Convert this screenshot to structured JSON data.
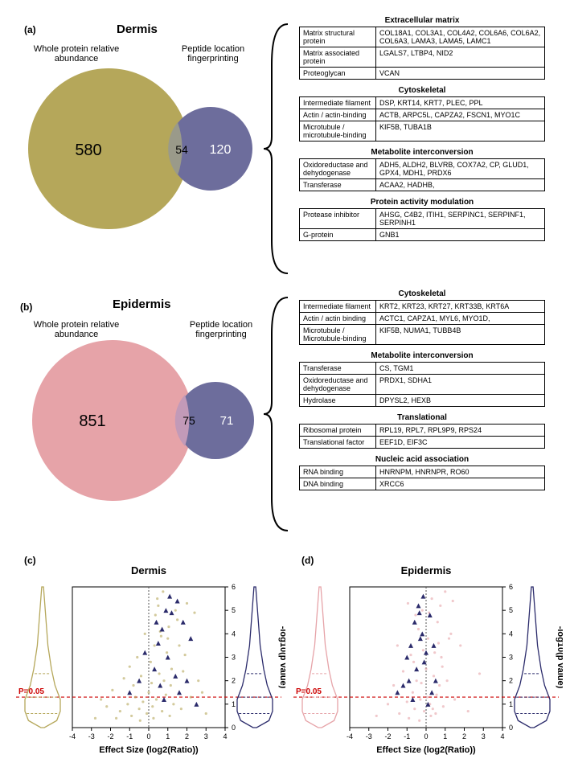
{
  "dermis": {
    "panel_label": "(a)",
    "title": "Dermis",
    "left_label": "Whole protein relative\nabundance",
    "right_label": "Peptide location\nfingerprinting",
    "venn": {
      "left_count": "580",
      "overlap_count": "54",
      "right_count": "120",
      "left_color": "#b5a75a",
      "right_color": "#6d6d9c",
      "overlap_color": "#8f8f8f"
    },
    "tables": [
      {
        "title": "Extracellular matrix",
        "rows": [
          [
            "Matrix structural protein",
            "COL18A1, COL3A1, COL4A2, COL6A6, COL6A2, COL6A3, LAMA3, LAMA5, LAMC1"
          ],
          [
            "Matrix associated protein",
            "LGALS7, LTBP4, NID2"
          ],
          [
            "Proteoglycan",
            "VCAN"
          ]
        ]
      },
      {
        "title": "Cytoskeletal",
        "rows": [
          [
            "Intermediate filament",
            "DSP, KRT14, KRT7, PLEC, PPL"
          ],
          [
            "Actin / actin-binding",
            "ACTB, ARPC5L, CAPZA2, FSCN1, MYO1C"
          ],
          [
            "Microtubule / microtubule-binding",
            "KIF5B, TUBA1B"
          ]
        ]
      },
      {
        "title": "Metabolite interconversion",
        "rows": [
          [
            "Oxidoreductase and dehydogenase",
            "ADH5, ALDH2, BLVRB, COX7A2, CP, GLUD1, GPX4, MDH1, PRDX6"
          ],
          [
            "Transferase",
            "ACAA2, HADHB,"
          ]
        ]
      },
      {
        "title": "Protein activity modulation",
        "rows": [
          [
            "Protease inhibitor",
            "AHSG, C4B2, ITIH1, SERPINC1, SERPINF1, SERPINH1"
          ],
          [
            "G-protein",
            "GNB1"
          ]
        ]
      }
    ]
  },
  "epidermis": {
    "panel_label": "(b)",
    "title": "Epidermis",
    "left_label": "Whole protein relative\nabundance",
    "right_label": "Peptide location\nfingerprinting",
    "venn": {
      "left_count": "851",
      "overlap_count": "75",
      "right_count": "71",
      "left_color": "#e6a3a8",
      "right_color": "#6d6d9c",
      "overlap_color": "#b98fb0"
    },
    "tables": [
      {
        "title": "Cytoskeletal",
        "rows": [
          [
            "Intermediate filament",
            "KRT2, KRT23, KRT27, KRT33B, KRT6A"
          ],
          [
            "Actin / actin binding",
            "ACTC1, CAPZA1, MYL6, MYO1D,"
          ],
          [
            "Microtubule / Microtubule-binding",
            "KIF5B, NUMA1, TUBB4B"
          ]
        ]
      },
      {
        "title": "Metabolite interconversion",
        "rows": [
          [
            "Transferase",
            "CS, TGM1"
          ],
          [
            "Oxidoreductase and dehydogenase",
            "PRDX1, SDHA1"
          ],
          [
            "Hydrolase",
            "DPYSL2, HEXB"
          ]
        ]
      },
      {
        "title": "Translational",
        "rows": [
          [
            "Ribosomal protein",
            "RPL19, RPL7, RPL9P9, RPS24"
          ],
          [
            "Translational factor",
            "EEF1D, EIF3C"
          ]
        ]
      },
      {
        "title": "Nucleic acid association",
        "rows": [
          [
            "RNA binding",
            "HNRNPM, HNRNPR, RO60"
          ],
          [
            "DNA binding",
            "XRCC6"
          ]
        ]
      }
    ]
  },
  "charts": {
    "dermis": {
      "panel_label": "(c)",
      "title": "Dermis",
      "xlabel": "Effect Size (log2(Ratio))",
      "ylabel": "-log10(p value)",
      "xlim": [
        -4,
        4
      ],
      "ylim": [
        0,
        6
      ],
      "xticks": [
        -4,
        -3,
        -2,
        -1,
        0,
        1,
        2,
        3,
        4
      ],
      "yticks": [
        0,
        1,
        2,
        3,
        4,
        5,
        6
      ],
      "p_line_label": "P=0.05",
      "p_line_y": 1.301,
      "scatter_colors": {
        "bg": "#b5a75a",
        "fg": "#2b2b6b"
      },
      "violin_left_color": "#b5a75a",
      "violin_right_color": "#2b2b6b",
      "bg_points": [
        [
          -2.8,
          0.4
        ],
        [
          -2.2,
          0.9
        ],
        [
          -1.9,
          1.6
        ],
        [
          -1.5,
          0.7
        ],
        [
          -1.3,
          2.1
        ],
        [
          -1.1,
          1.0
        ],
        [
          -0.9,
          0.5
        ],
        [
          -0.8,
          1.8
        ],
        [
          -0.6,
          3.0
        ],
        [
          -0.5,
          0.8
        ],
        [
          -0.4,
          2.2
        ],
        [
          -0.3,
          1.1
        ],
        [
          -0.2,
          4.0
        ],
        [
          -0.1,
          0.6
        ],
        [
          0.0,
          1.5
        ],
        [
          0.1,
          2.8
        ],
        [
          0.2,
          0.9
        ],
        [
          0.3,
          3.5
        ],
        [
          0.4,
          1.2
        ],
        [
          0.5,
          5.2
        ],
        [
          0.6,
          4.1
        ],
        [
          0.7,
          0.7
        ],
        [
          0.8,
          2.0
        ],
        [
          0.9,
          1.4
        ],
        [
          1.0,
          3.8
        ],
        [
          1.1,
          0.5
        ],
        [
          1.2,
          2.5
        ],
        [
          1.3,
          1.0
        ],
        [
          1.5,
          4.6
        ],
        [
          1.7,
          0.8
        ],
        [
          1.9,
          3.1
        ],
        [
          2.2,
          1.3
        ],
        [
          2.6,
          2.0
        ],
        [
          3.0,
          0.6
        ],
        [
          -2.5,
          1.2
        ],
        [
          -1.7,
          0.4
        ],
        [
          -1.0,
          2.6
        ],
        [
          -0.7,
          1.3
        ],
        [
          0.15,
          1.9
        ],
        [
          0.35,
          4.8
        ],
        [
          0.55,
          2.3
        ],
        [
          0.75,
          5.8
        ],
        [
          0.95,
          3.2
        ],
        [
          1.15,
          1.8
        ],
        [
          1.4,
          5.0
        ],
        [
          1.8,
          2.4
        ],
        [
          2.4,
          4.9
        ],
        [
          2.8,
          1.5
        ],
        [
          -0.45,
          0.3
        ],
        [
          0.25,
          0.4
        ],
        [
          0.45,
          5.5
        ],
        [
          0.65,
          3.9
        ],
        [
          1.05,
          4.3
        ],
        [
          1.6,
          3.5
        ],
        [
          2.0,
          5.3
        ]
      ],
      "fg_points": [
        [
          1.5,
          5.4
        ],
        [
          1.2,
          4.9
        ],
        [
          0.9,
          5.0
        ],
        [
          0.7,
          4.2
        ],
        [
          0.5,
          3.6
        ],
        [
          1.0,
          3.0
        ],
        [
          1.8,
          4.5
        ],
        [
          2.2,
          3.8
        ],
        [
          0.3,
          2.5
        ],
        [
          0.6,
          1.8
        ],
        [
          1.4,
          2.2
        ],
        [
          2.0,
          2.0
        ],
        [
          0.8,
          1.2
        ],
        [
          1.6,
          1.5
        ],
        [
          2.5,
          1.0
        ],
        [
          -0.2,
          3.2
        ],
        [
          -0.5,
          2.0
        ],
        [
          -1.0,
          1.5
        ],
        [
          0.4,
          4.5
        ],
        [
          1.1,
          5.6
        ]
      ]
    },
    "epidermis": {
      "panel_label": "(d)",
      "title": "Epidermis",
      "xlabel": "Effect Size (log2(Ratio))",
      "ylabel": "-log10(p value)",
      "xlim": [
        -4,
        4
      ],
      "ylim": [
        0,
        6
      ],
      "xticks": [
        -4,
        -3,
        -2,
        -1,
        0,
        1,
        2,
        3,
        4
      ],
      "yticks": [
        0,
        1,
        2,
        3,
        4,
        5,
        6
      ],
      "p_line_label": "P=0.05",
      "p_line_y": 1.301,
      "scatter_colors": {
        "bg": "#e6a3a8",
        "fg": "#2b2b6b"
      },
      "violin_left_color": "#e6a3a8",
      "violin_right_color": "#2b2b6b",
      "bg_points": [
        [
          -2.6,
          0.5
        ],
        [
          -2.0,
          1.0
        ],
        [
          -1.7,
          1.8
        ],
        [
          -1.4,
          0.6
        ],
        [
          -1.2,
          2.4
        ],
        [
          -1.0,
          1.1
        ],
        [
          -0.9,
          0.4
        ],
        [
          -0.8,
          3.1
        ],
        [
          -0.7,
          1.5
        ],
        [
          -0.6,
          0.8
        ],
        [
          -0.5,
          2.0
        ],
        [
          -0.4,
          4.2
        ],
        [
          -0.3,
          1.2
        ],
        [
          -0.2,
          5.0
        ],
        [
          -0.1,
          0.7
        ],
        [
          0.0,
          2.5
        ],
        [
          0.1,
          3.8
        ],
        [
          0.2,
          1.0
        ],
        [
          0.3,
          5.5
        ],
        [
          0.4,
          2.2
        ],
        [
          0.5,
          0.6
        ],
        [
          0.6,
          4.5
        ],
        [
          0.7,
          1.8
        ],
        [
          0.8,
          3.0
        ],
        [
          0.9,
          0.9
        ],
        [
          1.0,
          5.8
        ],
        [
          1.1,
          2.0
        ],
        [
          1.3,
          4.0
        ],
        [
          1.5,
          1.2
        ],
        [
          1.8,
          3.5
        ],
        [
          2.2,
          0.7
        ],
        [
          2.8,
          2.3
        ],
        [
          -1.5,
          3.5
        ],
        [
          -0.95,
          5.3
        ],
        [
          -0.55,
          4.8
        ],
        [
          -0.15,
          3.3
        ],
        [
          0.15,
          4.9
        ],
        [
          0.45,
          3.2
        ],
        [
          0.75,
          5.2
        ],
        [
          1.2,
          3.8
        ],
        [
          -0.35,
          0.3
        ],
        [
          0.25,
          0.5
        ],
        [
          0.55,
          1.4
        ],
        [
          0.85,
          2.6
        ],
        [
          1.4,
          5.4
        ],
        [
          -0.65,
          2.8
        ],
        [
          -0.25,
          1.9
        ],
        [
          0.05,
          1.3
        ],
        [
          0.35,
          0.8
        ],
        [
          0.65,
          3.6
        ]
      ],
      "fg_points": [
        [
          -0.4,
          5.2
        ],
        [
          -0.6,
          4.5
        ],
        [
          -0.2,
          4.0
        ],
        [
          -0.8,
          3.5
        ],
        [
          -1.0,
          3.0
        ],
        [
          -0.3,
          3.8
        ],
        [
          -0.5,
          2.5
        ],
        [
          -0.9,
          2.0
        ],
        [
          -1.2,
          1.8
        ],
        [
          -0.1,
          2.8
        ],
        [
          0.2,
          4.8
        ],
        [
          0.4,
          3.5
        ],
        [
          -0.7,
          1.2
        ],
        [
          -1.5,
          1.5
        ],
        [
          0.1,
          1.0
        ],
        [
          0.5,
          2.0
        ],
        [
          -0.15,
          5.6
        ],
        [
          -0.35,
          4.9
        ],
        [
          0.0,
          3.2
        ],
        [
          0.3,
          1.5
        ]
      ]
    }
  }
}
